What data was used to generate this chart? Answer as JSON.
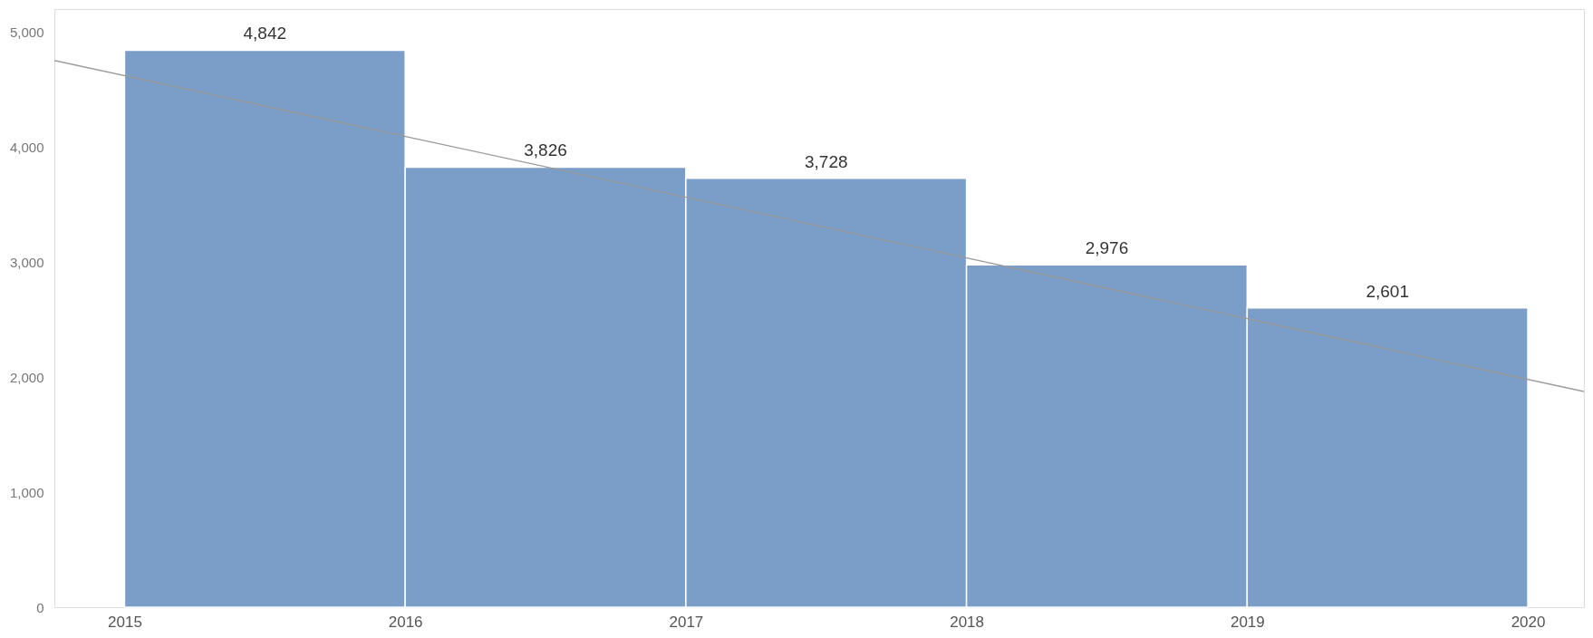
{
  "chart_data": {
    "type": "histogram",
    "bins": [
      2015,
      2016,
      2017,
      2018,
      2019,
      2020
    ],
    "values": [
      4842,
      3826,
      3728,
      2976,
      2601
    ],
    "color": "#7399c6",
    "value_labels": [
      "4,842",
      "3,826",
      "3,728",
      "2,976",
      "2,601"
    ],
    "xlim": [
      2014.75,
      2020.2
    ],
    "xticks": [
      2015,
      2016,
      2017,
      2018,
      2019,
      2020
    ],
    "ylim": [
      0,
      5200
    ],
    "yticks": [
      0,
      {
        "value": 1000,
        "label": "1,000"
      },
      {
        "value": 2000,
        "label": "2,000"
      },
      {
        "value": 3000,
        "label": "3,000"
      },
      {
        "value": 4000,
        "label": "4,000"
      },
      {
        "value": 5000,
        "label": "5,000"
      }
    ],
    "grid": false,
    "series": [
      {
        "type": "line",
        "x": [
          2014.75,
          2020.2
        ],
        "values": [
          4753,
          1875
        ],
        "color": "#9a9a9a"
      }
    ]
  }
}
